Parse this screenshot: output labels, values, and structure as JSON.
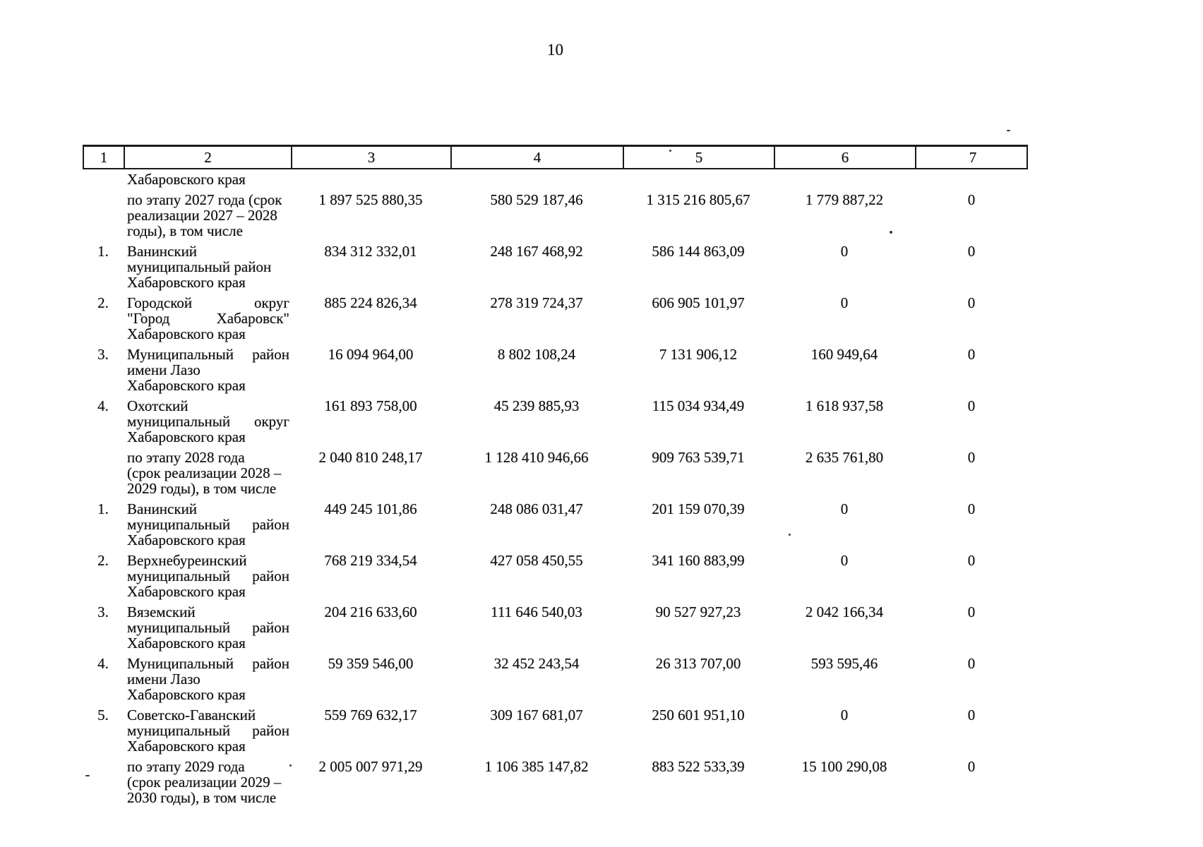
{
  "page_number": "10",
  "colors": {
    "ink": "#151515",
    "paper": "#ffffff",
    "border": "#1a1a1a"
  },
  "table": {
    "headers": [
      "1",
      "2",
      "3",
      "4",
      "5",
      "6",
      "7"
    ],
    "rows": [
      {
        "num": "",
        "lines": [
          {
            "text": "Хабаровского края",
            "spread": false
          }
        ],
        "values": [
          "",
          "",
          "",
          "",
          ""
        ]
      },
      {
        "num": "",
        "lines": [
          {
            "text": "по этапу 2027 года (срок",
            "spread": false
          },
          {
            "text": "реализации 2027 – 2028",
            "spread": false
          },
          {
            "text": "годы), в том числе",
            "spread": false
          }
        ],
        "values": [
          "1 897 525 880,35",
          "580 529 187,46",
          "1 315 216 805,67",
          "1 779 887,22",
          "0"
        ]
      },
      {
        "num": "1.",
        "lines": [
          {
            "text": "Ванинский",
            "spread": false
          },
          {
            "text": "муниципальный район",
            "spread": false
          },
          {
            "text": "Хабаровского края",
            "spread": false
          }
        ],
        "values": [
          "834 312 332,01",
          "248 167 468,92",
          "586 144 863,09",
          "0",
          "0"
        ]
      },
      {
        "num": "2.",
        "lines": [
          {
            "text": "Городской округ",
            "spread": true
          },
          {
            "text": "\"Город Хабаровск\"",
            "spread": true
          },
          {
            "text": "Хабаровского края",
            "spread": false
          }
        ],
        "values": [
          "885 224 826,34",
          "278 319 724,37",
          "606 905 101,97",
          "0",
          "0"
        ]
      },
      {
        "num": "3.",
        "lines": [
          {
            "text": "Муниципальный район",
            "spread": true
          },
          {
            "text": "имени Лазо",
            "spread": false
          },
          {
            "text": "Хабаровского края",
            "spread": false
          }
        ],
        "values": [
          "16 094 964,00",
          "8 802 108,24",
          "7 131 906,12",
          "160 949,64",
          "0"
        ]
      },
      {
        "num": "4.",
        "lines": [
          {
            "text": "Охотский",
            "spread": false
          },
          {
            "text": "муниципальный округ",
            "spread": true
          },
          {
            "text": "Хабаровского края",
            "spread": false
          }
        ],
        "values": [
          "161 893 758,00",
          "45 239 885,93",
          "115 034 934,49",
          "1 618 937,58",
          "0"
        ]
      },
      {
        "num": "",
        "lines": [
          {
            "text": "по этапу 2028 года",
            "spread": false
          },
          {
            "text": "(срок реализации 2028 –",
            "spread": false
          },
          {
            "text": "2029 годы), в том числе",
            "spread": false
          }
        ],
        "values": [
          "2 040 810 248,17",
          "1 128 410 946,66",
          "909 763 539,71",
          "2 635 761,80",
          "0"
        ]
      },
      {
        "num": "1.",
        "lines": [
          {
            "text": "Ванинский",
            "spread": false
          },
          {
            "text": "муниципальный район",
            "spread": true
          },
          {
            "text": "Хабаровского края",
            "spread": false
          }
        ],
        "values": [
          "449 245 101,86",
          "248 086 031,47",
          "201 159 070,39",
          "0",
          "0"
        ]
      },
      {
        "num": "2.",
        "lines": [
          {
            "text": "Верхнебуреинский",
            "spread": false
          },
          {
            "text": "муниципальный район",
            "spread": true
          },
          {
            "text": "Хабаровского края",
            "spread": false
          }
        ],
        "values": [
          "768 219 334,54",
          "427 058 450,55",
          "341 160 883,99",
          "0",
          "0"
        ]
      },
      {
        "num": "3.",
        "lines": [
          {
            "text": "Вяземский",
            "spread": false
          },
          {
            "text": "муниципальный район",
            "spread": true
          },
          {
            "text": "Хабаровского края",
            "spread": false
          }
        ],
        "values": [
          "204 216 633,60",
          "111 646 540,03",
          "90 527 927,23",
          "2 042 166,34",
          "0"
        ]
      },
      {
        "num": "4.",
        "lines": [
          {
            "text": "Муниципальный район",
            "spread": true
          },
          {
            "text": "имени Лазо",
            "spread": false
          },
          {
            "text": "Хабаровского края",
            "spread": false
          }
        ],
        "values": [
          "59 359 546,00",
          "32 452 243,54",
          "26 313 707,00",
          "593 595,46",
          "0"
        ]
      },
      {
        "num": "5.",
        "lines": [
          {
            "text": "Советско-Гаванский",
            "spread": false
          },
          {
            "text": "муниципальный район",
            "spread": true
          },
          {
            "text": "Хабаровского края",
            "spread": false
          }
        ],
        "values": [
          "559 769 632,17",
          "309 167 681,07",
          "250 601 951,10",
          "0",
          "0"
        ]
      },
      {
        "num": "",
        "lines": [
          {
            "text": "по этапу 2029 года",
            "spread": false
          },
          {
            "text": "(срок реализации 2029 –",
            "spread": false
          },
          {
            "text": "2030 годы), в том числе",
            "spread": false
          }
        ],
        "values": [
          "2 005 007 971,29",
          "1 106 385 147,82",
          "883 522 533,39",
          "15 100 290,08",
          "0"
        ]
      }
    ]
  }
}
